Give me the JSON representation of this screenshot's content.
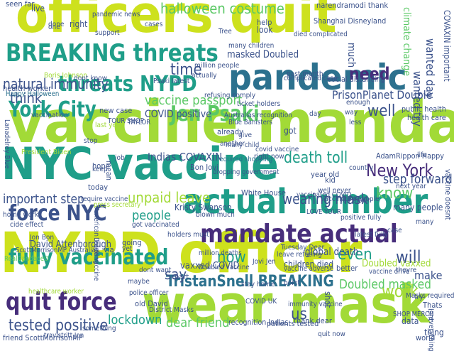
{
  "palette": {
    "background": "#ffffff",
    "yellow": "#cde11d",
    "lime": "#a2da37",
    "green": "#5bc865",
    "teal": "#1f9e89",
    "blue": "#2c718e",
    "navy": "#3b528b",
    "indigo": "#472d7b",
    "violet": "#440154"
  },
  "words": [
    {
      "text": "officers quit"
    },
    {
      "text": "vaccine mandate"
    },
    {
      "text": "NYC vaccine"
    },
    {
      "text": "NYPD officer"
    },
    {
      "text": "wear mask"
    },
    {
      "text": "pandemic"
    },
    {
      "text": "actual number"
    },
    {
      "text": "mandate actual"
    },
    {
      "text": "BREAKING threats"
    },
    {
      "text": "threats NYPD"
    },
    {
      "text": "quit force"
    },
    {
      "text": "force NYC"
    },
    {
      "text": "fully vaccinated"
    },
    {
      "text": "York City"
    },
    {
      "text": "Jen Psaki"
    },
    {
      "text": "TristanSnell BREAKING"
    },
    {
      "text": "tested positive"
    },
    {
      "text": "natural immunity"
    },
    {
      "text": "halloween costume"
    },
    {
      "text": "vaccine passport"
    },
    {
      "text": "New York"
    },
    {
      "text": "death toll"
    },
    {
      "text": "unpaid leave"
    },
    {
      "text": "wearing mask"
    },
    {
      "text": "Doubled masked"
    },
    {
      "text": "lockdown"
    },
    {
      "text": "dear friend"
    },
    {
      "text": "need"
    },
    {
      "text": "time"
    },
    {
      "text": "well"
    },
    {
      "text": "know"
    },
    {
      "text": "work"
    },
    {
      "text": "will"
    },
    {
      "text": "now"
    },
    {
      "text": "say"
    },
    {
      "text": "even"
    },
    {
      "text": "think"
    },
    {
      "text": "people"
    },
    {
      "text": "important step"
    },
    {
      "text": "step forward"
    },
    {
      "text": "COVID positive"
    },
    {
      "text": "Indias COVAXIN"
    },
    {
      "text": "vaxxed COVID"
    },
    {
      "text": "PrisonPlanet Double"
    },
    {
      "text": "masked Doubled"
    },
    {
      "text": "Doubled vaxxed"
    },
    {
      "text": "wanted try"
    },
    {
      "text": "wanted day"
    },
    {
      "text": "David Attenborough"
    },
    {
      "text": "global death"
    },
    {
      "text": "many people"
    },
    {
      "text": "us"
    },
    {
      "text": "make"
    },
    {
      "text": "climate change"
    },
    {
      "text": "COVAXIN important"
    },
    {
      "text": "Boris Johnson"
    },
    {
      "text": "health worker"
    },
    {
      "text": "Happy Halloween"
    },
    {
      "text": "live"
    },
    {
      "text": "seen far"
    },
    {
      "text": "much"
    },
    {
      "text": "right"
    },
    {
      "text": "dont know"
    },
    {
      "text": "new case"
    },
    {
      "text": "Kristy Swanson"
    },
    {
      "text": "White House"
    },
    {
      "text": "Bon Jovi"
    },
    {
      "text": "AdamRippon Happy"
    },
    {
      "text": "President Biden"
    },
    {
      "text": "ScottMorrisonMP Australias"
    },
    {
      "text": "social distancing"
    },
    {
      "text": "public health"
    },
    {
      "text": "health care"
    },
    {
      "text": "Shanghai Disneyland"
    },
    {
      "text": "narendramodi thank"
    },
    {
      "text": "vaccinated people"
    },
    {
      "text": "full blown"
    },
    {
      "text": "Australias recognition"
    },
    {
      "text": "leave refusing"
    },
    {
      "text": "refusing comply"
    },
    {
      "text": "Masks required"
    },
    {
      "text": "vaccine doesnt"
    },
    {
      "text": "positive fully"
    },
    {
      "text": "children died"
    },
    {
      "text": "required shopping"
    },
    {
      "text": "thank dear"
    },
    {
      "text": "recognition Indias"
    },
    {
      "text": "patients tested"
    },
    {
      "text": "friend ScottMorrisonMP"
    },
    {
      "text": "Thats"
    },
    {
      "text": "isnt"
    },
    {
      "text": "thing"
    },
    {
      "text": "data"
    },
    {
      "text": "world"
    },
    {
      "text": "better"
    },
    {
      "text": "got"
    },
    {
      "text": "look"
    },
    {
      "text": "help"
    },
    {
      "text": "Tree"
    },
    {
      "text": "many children"
    },
    {
      "text": "million people"
    },
    {
      "text": "actually"
    },
    {
      "text": "hope"
    },
    {
      "text": "mean"
    },
    {
      "text": "job"
    },
    {
      "text": "today"
    },
    {
      "text": "already"
    },
    {
      "text": "another"
    },
    {
      "text": "year old"
    },
    {
      "text": "kid"
    },
    {
      "text": "country"
    },
    {
      "text": "something"
    },
    {
      "text": "point"
    },
    {
      "text": "shot"
    },
    {
      "text": "going"
    },
    {
      "text": "maybe"
    },
    {
      "text": "part"
    },
    {
      "text": "via"
    },
    {
      "text": "yet"
    },
    {
      "text": "home work"
    },
    {
      "text": "cide effect"
    },
    {
      "text": "require vaccine"
    },
    {
      "text": "old David"
    },
    {
      "text": "District Masks"
    },
    {
      "text": "police officer"
    },
    {
      "text": "healthcare worker"
    },
    {
      "text": "travistritt Jon"
    },
    {
      "text": "Jovi Jen"
    },
    {
      "text": "Psaki latest"
    },
    {
      "text": "latest fully"
    },
    {
      "text": "last year"
    },
    {
      "text": "next year"
    },
    {
      "text": "many"
    },
    {
      "text": "support"
    },
    {
      "text": "done"
    },
    {
      "text": "vaccination"
    },
    {
      "text": "Jon Bon"
    },
    {
      "text": "pandemic news"
    },
    {
      "text": "died complicated"
    },
    {
      "text": "complicated case"
    },
    {
      "text": "past month"
    },
    {
      "text": "Blue Banisters"
    },
    {
      "text": "American Trucking"
    },
    {
      "text": "Leave vaccine"
    },
    {
      "text": "RealCandaceO"
    },
    {
      "text": "Tuesday Dear"
    },
    {
      "text": "ticket holders"
    },
    {
      "text": "holders must"
    },
    {
      "text": "Doubled vaccine"
    },
    {
      "text": "TOUR SHOP"
    },
    {
      "text": "SHOP MERCH"
    },
    {
      "text": "TAYLOR"
    },
    {
      "text": "Lanadelrey Blue"
    },
    {
      "text": "press secretary"
    },
    {
      "text": "covid vaccine"
    },
    {
      "text": "got vaccinated"
    },
    {
      "text": "dont want"
    },
    {
      "text": "blown much"
    },
    {
      "text": "stay home"
    },
    {
      "text": "vaccine adverse"
    },
    {
      "text": "vaccine drive"
    },
    {
      "text": "theyre"
    },
    {
      "text": "everything"
    },
    {
      "text": "dropping government"
    },
    {
      "text": "million deaths"
    },
    {
      "text": "COVID UK"
    },
    {
      "text": "enough"
    },
    {
      "text": "way"
    },
    {
      "text": "day"
    },
    {
      "text": "less"
    },
    {
      "text": "give"
    },
    {
      "text": "case"
    },
    {
      "text": "keep"
    },
    {
      "text": "right now"
    },
    {
      "text": "life"
    },
    {
      "text": "LOVE YOUR"
    },
    {
      "text": "vaccinated COVID"
    },
    {
      "text": "many child"
    },
    {
      "text": "quit now"
    },
    {
      "text": "well never"
    },
    {
      "text": "one"
    },
    {
      "text": "try"
    },
    {
      "text": "stop"
    },
    {
      "text": "cases"
    },
    {
      "text": "immunity vaccine"
    }
  ]
}
